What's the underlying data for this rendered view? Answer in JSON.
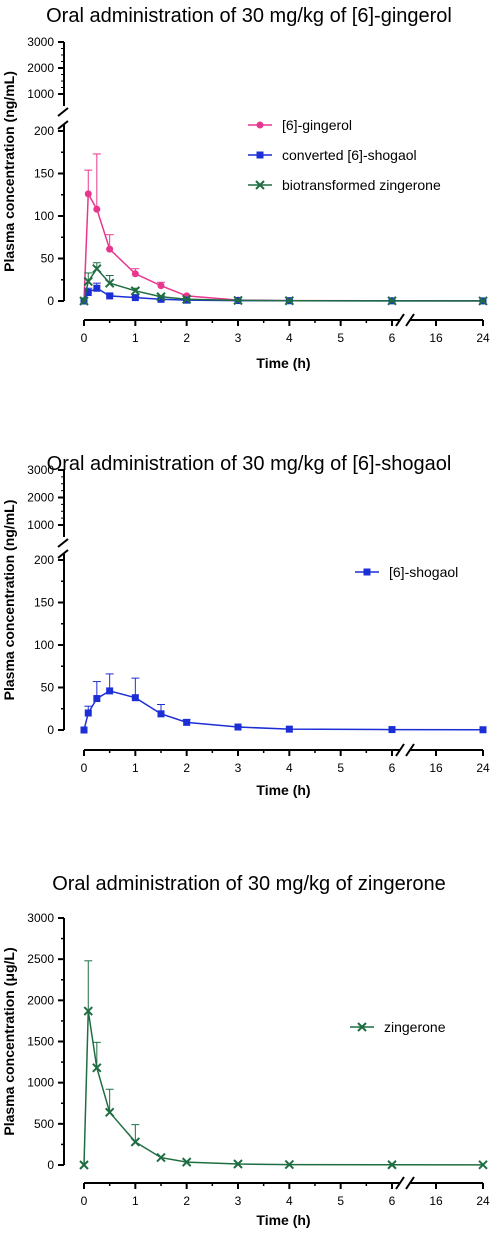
{
  "chart_data": [
    {
      "type": "line",
      "title": "Oral administration of 30 mg/kg of [6]-gingerol",
      "xlabel": "Time (h)",
      "ylabel": "Plasma concentration (ng/mL)",
      "x_tick_labels": [
        "0",
        "1",
        "2",
        "3",
        "4",
        "5",
        "6",
        "16",
        "24"
      ],
      "x_axis_break": "between 6 and 16",
      "y_axis_break": "between 200 and 1000",
      "y_tick_labels_lower": [
        "0",
        "50",
        "100",
        "150",
        "200"
      ],
      "y_tick_labels_upper": [
        "1000",
        "2000",
        "3000"
      ],
      "y_lower_range": [
        0,
        200
      ],
      "y_upper_range": [
        1000,
        3000
      ],
      "legend_position": "upper-right",
      "x": [
        0,
        0.083,
        0.25,
        0.5,
        1,
        1.5,
        2,
        3,
        4,
        6,
        24
      ],
      "series": [
        {
          "name": "[6]-gingerol",
          "color": "#e8368f",
          "marker": "circle",
          "values": [
            0,
            126,
            108,
            61,
            32,
            18,
            6,
            1,
            0.5,
            0.3,
            0.2
          ],
          "error": [
            0,
            28,
            65,
            17,
            6,
            4,
            1,
            0.5,
            0,
            0,
            0
          ]
        },
        {
          "name": "converted [6]-shogaol",
          "color": "#1c2fd6",
          "marker": "square",
          "values": [
            0,
            10,
            15,
            6,
            4,
            2,
            1,
            0.5,
            0.3,
            0.2,
            0.1
          ],
          "error": [
            0,
            5,
            6,
            2,
            1,
            0.5,
            0.3,
            0,
            0,
            0,
            0
          ]
        },
        {
          "name": "biotransformed zingerone",
          "color": "#1f6e43",
          "marker": "x",
          "values": [
            0,
            23,
            38,
            21,
            12,
            5,
            2,
            0.7,
            0.3,
            0.2,
            0.1
          ],
          "error": [
            0,
            10,
            7,
            9,
            3,
            1,
            0.5,
            0,
            0,
            0,
            0
          ]
        }
      ]
    },
    {
      "type": "line",
      "title": "Oral administration of 30 mg/kg of [6]-shogaol",
      "xlabel": "Time (h)",
      "ylabel": "Plasma concentration (ng/mL)",
      "x_tick_labels": [
        "0",
        "1",
        "2",
        "3",
        "4",
        "5",
        "6",
        "16",
        "24"
      ],
      "x_axis_break": "between 6 and 16",
      "y_axis_break": "between 200 and 1000",
      "y_tick_labels_lower": [
        "0",
        "50",
        "100",
        "150",
        "200"
      ],
      "y_tick_labels_upper": [
        "1000",
        "2000",
        "3000"
      ],
      "y_lower_range": [
        0,
        200
      ],
      "y_upper_range": [
        1000,
        3000
      ],
      "legend_position": "upper-right",
      "x": [
        0,
        0.083,
        0.25,
        0.5,
        1,
        1.5,
        2,
        3,
        4,
        6,
        24
      ],
      "series": [
        {
          "name": "[6]-shogaol",
          "color": "#1c2fd6",
          "marker": "square",
          "values": [
            0,
            20,
            37,
            46,
            38,
            19,
            9,
            3.5,
            1,
            0.5,
            0.3
          ],
          "error": [
            0,
            8,
            20,
            20,
            23,
            11,
            3,
            0.5,
            0,
            0,
            0
          ]
        }
      ]
    },
    {
      "type": "line",
      "title": "Oral administration of 30 mg/kg of zingerone",
      "xlabel": "Time (h)",
      "ylabel": "Plasma concentration (μg/L)",
      "x_tick_labels": [
        "0",
        "1",
        "2",
        "3",
        "4",
        "5",
        "6",
        "16",
        "24"
      ],
      "x_axis_break": "between 6 and 16",
      "y_tick_labels": [
        "0",
        "500",
        "1000",
        "1500",
        "2000",
        "2500",
        "3000"
      ],
      "ylim": [
        0,
        3000
      ],
      "legend_position": "right",
      "x": [
        0,
        0.083,
        0.25,
        0.5,
        1,
        1.5,
        2,
        3,
        4,
        6,
        24
      ],
      "series": [
        {
          "name": "zingerone",
          "color": "#1f6e43",
          "marker": "x",
          "values": [
            0,
            1870,
            1180,
            640,
            280,
            90,
            35,
            12,
            5,
            3,
            2
          ],
          "error": [
            0,
            610,
            310,
            280,
            210,
            0,
            0,
            0,
            0,
            0,
            0
          ]
        }
      ]
    }
  ]
}
